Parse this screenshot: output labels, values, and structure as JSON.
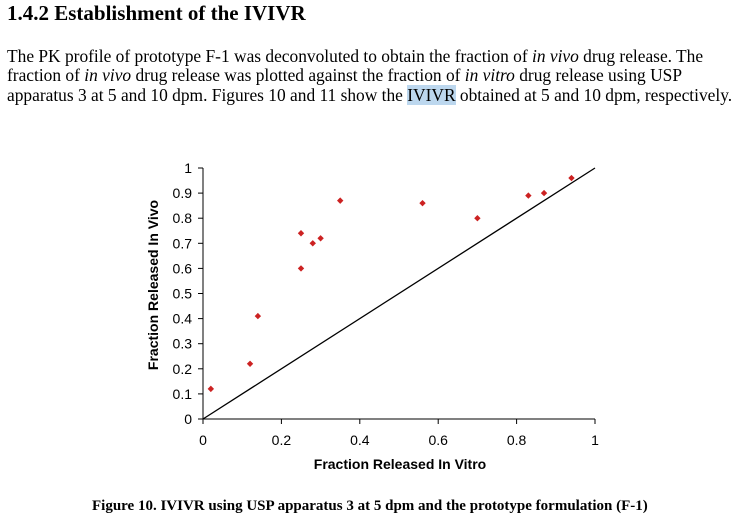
{
  "heading": "1.4.2 Establishment of the IVIVR",
  "paragraph": {
    "s1": "The PK profile of prototype F-1 was deconvoluted to obtain the fraction of ",
    "i1": "in vivo",
    "s2": " drug release. The fraction of ",
    "i2": "in vivo",
    "s3": " drug release was plotted against the fraction of ",
    "i3": "in vitro",
    "s4": " drug release using USP apparatus 3 at 5 and 10 dpm. Figures 10 and 11 show the ",
    "highlight": "IVIVR",
    "s5": " obtained at 5 and 10 dpm, respectively."
  },
  "chart_data": {
    "type": "scatter",
    "xlabel": "Fraction Released In Vitro",
    "ylabel": "Fraction Released In Vivo",
    "xlim": [
      0,
      1
    ],
    "ylim": [
      0,
      1
    ],
    "xticks": [
      "0",
      "0.2",
      "0.4",
      "0.6",
      "0.8",
      "1"
    ],
    "yticks": [
      "0",
      "0.1",
      "0.2",
      "0.3",
      "0.4",
      "0.5",
      "0.6",
      "0.7",
      "0.8",
      "0.9",
      "1"
    ],
    "grid": false,
    "marker_color": "#cc2222",
    "reference_line": "y = x",
    "points": [
      {
        "x": 0.02,
        "y": 0.12
      },
      {
        "x": 0.12,
        "y": 0.22
      },
      {
        "x": 0.14,
        "y": 0.41
      },
      {
        "x": 0.25,
        "y": 0.6
      },
      {
        "x": 0.25,
        "y": 0.74
      },
      {
        "x": 0.28,
        "y": 0.7
      },
      {
        "x": 0.3,
        "y": 0.72
      },
      {
        "x": 0.35,
        "y": 0.87
      },
      {
        "x": 0.56,
        "y": 0.86
      },
      {
        "x": 0.7,
        "y": 0.8
      },
      {
        "x": 0.83,
        "y": 0.89
      },
      {
        "x": 0.87,
        "y": 0.9
      },
      {
        "x": 0.94,
        "y": 0.96
      }
    ]
  },
  "caption": "Figure 10. IVIVR using USP apparatus 3 at 5 dpm and the prototype formulation (F-1)"
}
